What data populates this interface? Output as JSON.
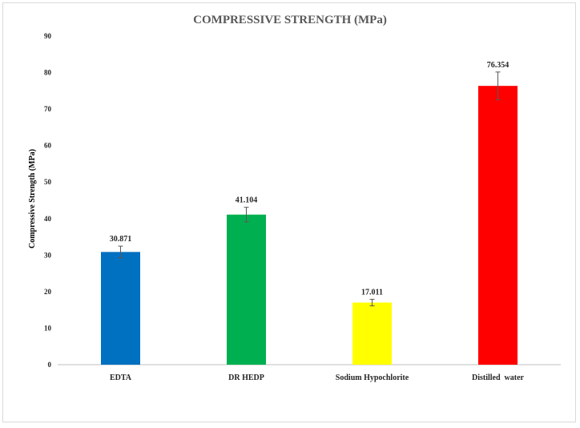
{
  "chart_data": {
    "type": "bar",
    "title": "COMPRESSIVE STRENGTH (MPa)",
    "ylabel": "Compressive Strength (MPa)",
    "xlabel": "",
    "categories": [
      "EDTA",
      "DR HEDP",
      "Sodium Hypochlorite",
      "Distilled  water"
    ],
    "values": [
      30.871,
      41.104,
      17.011,
      76.354
    ],
    "data_labels": [
      "30.871",
      "41.104",
      "17.011",
      "76.354"
    ],
    "error": [
      1.6,
      2.0,
      0.9,
      3.8
    ],
    "colors": [
      "#0070c0",
      "#00b050",
      "#ffff00",
      "#ff0000"
    ],
    "ylim": [
      0,
      90
    ],
    "yticks": [
      0,
      10,
      20,
      30,
      40,
      50,
      60,
      70,
      80,
      90
    ],
    "grid": false,
    "legend": "none"
  }
}
